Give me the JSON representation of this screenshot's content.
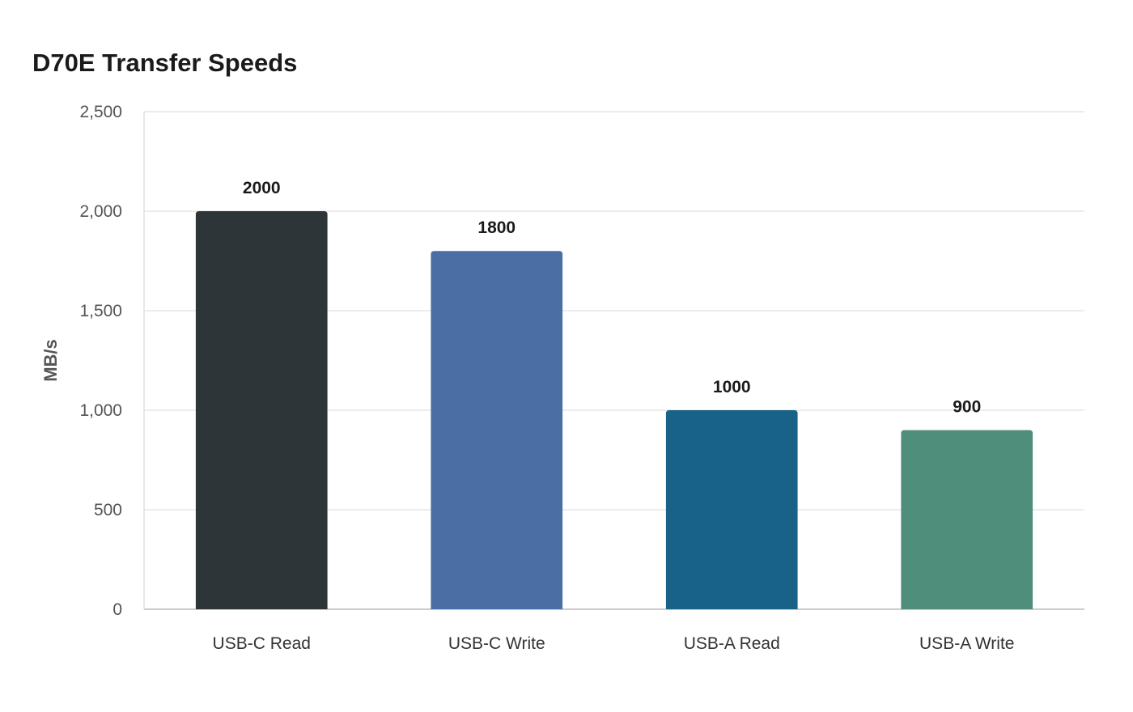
{
  "chart_data": {
    "type": "bar",
    "title": "D70E Transfer Speeds",
    "xlabel": "",
    "ylabel": "MB/s",
    "categories": [
      "USB-C Read",
      "USB-C Write",
      "USB-A Read",
      "USB-A Write"
    ],
    "values": [
      2000,
      1800,
      1000,
      900
    ],
    "data_labels": [
      "2000",
      "1800",
      "1000",
      "900"
    ],
    "colors": [
      "#2e3538",
      "#4a6fa5",
      "#186288",
      "#4e8e7b"
    ],
    "ylim": [
      0,
      2500
    ],
    "yticks": [
      0,
      500,
      1000,
      1500,
      2000,
      2500
    ],
    "ytick_labels": [
      "0",
      "500",
      "1,000",
      "1,500",
      "2,000",
      "2,500"
    ],
    "grid": true,
    "legend": "none"
  }
}
